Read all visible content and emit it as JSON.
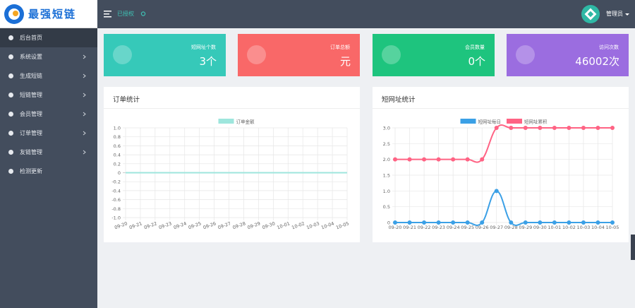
{
  "logo": {
    "text": "最强短链"
  },
  "header": {
    "status": "已授权",
    "user": "管理员"
  },
  "sidebar": {
    "menu": [
      {
        "label": "后台首页",
        "active": true,
        "submenu": false
      },
      {
        "label": "系统设置",
        "active": false,
        "submenu": true
      },
      {
        "label": "生成短链",
        "active": false,
        "submenu": true
      },
      {
        "label": "短链管理",
        "active": false,
        "submenu": true
      },
      {
        "label": "会员管理",
        "active": false,
        "submenu": true
      },
      {
        "label": "订单管理",
        "active": false,
        "submenu": true
      },
      {
        "label": "友链管理",
        "active": false,
        "submenu": true
      },
      {
        "label": "检测更新",
        "active": false,
        "submenu": false
      }
    ]
  },
  "stats": [
    {
      "label": "短网址个数",
      "value": "3个",
      "color": "#36c9b9"
    },
    {
      "label": "订单总额",
      "value": "元",
      "color": "#f96868"
    },
    {
      "label": "会员数量",
      "value": "0个",
      "color": "#1ec47e"
    },
    {
      "label": "访问次数",
      "value": "46002次",
      "color": "#9b6de0"
    }
  ],
  "chart_data": [
    {
      "type": "line",
      "title": "订单统计",
      "categories": [
        "09-20",
        "09-21",
        "09-22",
        "09-23",
        "09-24",
        "09-25",
        "09-26",
        "09-27",
        "09-28",
        "09-29",
        "09-30",
        "10-01",
        "10-02",
        "10-03",
        "10-04",
        "10-05"
      ],
      "series": [
        {
          "name": "订单金额",
          "color": "#9ee6dd",
          "values": [
            0,
            0,
            0,
            0,
            0,
            0,
            0,
            0,
            0,
            0,
            0,
            0,
            0,
            0,
            0,
            0
          ]
        }
      ],
      "ylim": [
        -1,
        1
      ],
      "yticks": [
        {
          "value": -1,
          "label": "-1.0"
        },
        -0.8,
        -0.6,
        -0.4,
        -0.2,
        0,
        0.2,
        0.4,
        0.6,
        0.8,
        {
          "value": 1,
          "label": "1.0"
        }
      ],
      "grid": true
    },
    {
      "type": "line",
      "title": "短网址统计",
      "categories": [
        "09-20",
        "09-21",
        "09-22",
        "09-23",
        "09-24",
        "09-25",
        "09-26",
        "09-27",
        "09-28",
        "09-29",
        "09-30",
        "10-01",
        "10-02",
        "10-03",
        "10-04",
        "10-05"
      ],
      "series": [
        {
          "name": "短网址每日",
          "color": "#3ba0e6",
          "values": [
            0,
            0,
            0,
            0,
            0,
            0,
            0,
            1,
            0,
            0,
            0,
            0,
            0,
            0,
            0,
            0
          ]
        },
        {
          "name": "短网址累积",
          "color": "#ff6384",
          "values": [
            2,
            2,
            2,
            2,
            2,
            2,
            2,
            3,
            3,
            3,
            3,
            3,
            3,
            3,
            3,
            3
          ]
        }
      ],
      "ylim": [
        0,
        3
      ],
      "yticks": [
        0,
        0.5,
        {
          "value": 1,
          "label": "1.0"
        },
        1.5,
        {
          "value": 2,
          "label": "2.0"
        },
        2.5,
        {
          "value": 3,
          "label": "3.0"
        }
      ],
      "grid": true
    }
  ]
}
